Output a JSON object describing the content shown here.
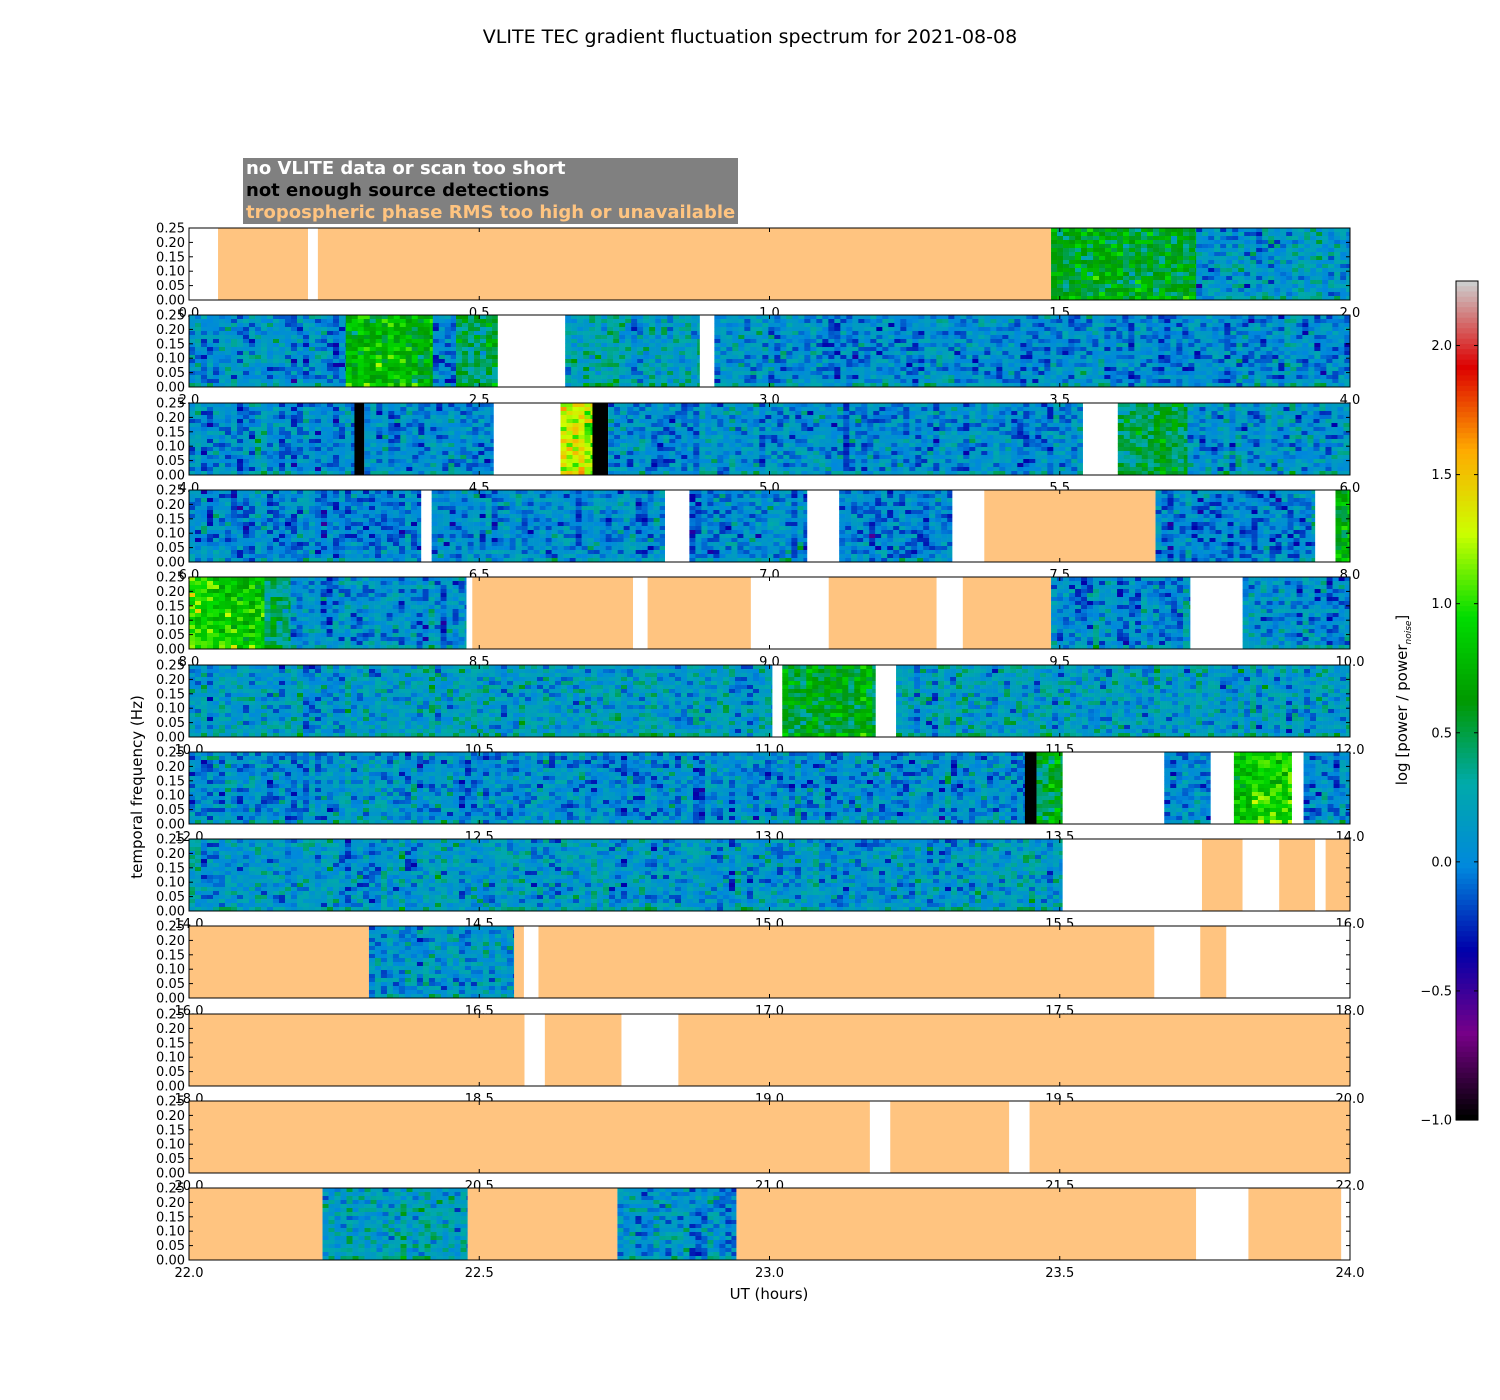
{
  "chart_data": {
    "type": "heatmap",
    "title": "VLITE TEC gradient fluctuation spectrum for 2021-08-08",
    "xlabel": "UT (hours)",
    "ylabel": "temporal frequency (Hz)",
    "ylim": [
      0,
      0.25
    ],
    "yticks": [
      "0.00",
      "0.05",
      "0.10",
      "0.15",
      "0.20",
      "0.25"
    ],
    "colorbar": {
      "label_main": "log [power / power",
      "label_sub": "noise",
      "label_end": "]",
      "range": [
        -1.0,
        2.25
      ],
      "ticks": [
        "−1.0",
        "−0.5",
        "0.0",
        "0.5",
        "1.0",
        "1.5",
        "2.0"
      ],
      "colormap": "spectral"
    },
    "legend": {
      "items": [
        {
          "label": "no VLITE data or scan too short",
          "color": "#ffffff"
        },
        {
          "label": "not enough source detections",
          "color": "#000000"
        },
        {
          "label": "tropospheric phase RMS too high or unavailable",
          "color": "#ffc480"
        }
      ],
      "background": "#808080"
    },
    "colors": {
      "tropo": "#ffc480",
      "nodata": "#ffffff",
      "nodet": "#000000"
    },
    "panels": [
      {
        "xlim": [
          0,
          2
        ],
        "xticks": [
          "0.0",
          "0.5",
          "1.0",
          "1.5",
          "2.0"
        ],
        "segments": [
          [
            0.0,
            0.05,
            "nodata"
          ],
          [
            0.05,
            0.205,
            "tropo"
          ],
          [
            0.205,
            0.222,
            "nodata"
          ],
          [
            0.222,
            1.485,
            "tropo"
          ],
          [
            1.485,
            1.735,
            "data",
            0.6
          ],
          [
            1.735,
            2.0,
            "data",
            0.1
          ]
        ]
      },
      {
        "xlim": [
          2,
          4
        ],
        "xticks": [
          "2.0",
          "2.5",
          "3.0",
          "3.5",
          "4.0"
        ],
        "segments": [
          [
            2.0,
            2.27,
            "data",
            0.05
          ],
          [
            2.27,
            2.42,
            "data",
            0.75
          ],
          [
            2.42,
            2.46,
            "data",
            0.05
          ],
          [
            2.46,
            2.532,
            "data",
            0.45
          ],
          [
            2.532,
            2.648,
            "nodata"
          ],
          [
            2.648,
            2.88,
            "data",
            0.2
          ],
          [
            2.88,
            2.905,
            "nodata"
          ],
          [
            2.905,
            4.0,
            "data",
            0.05
          ]
        ]
      },
      {
        "xlim": [
          4,
          6
        ],
        "xticks": [
          "4.0",
          "4.5",
          "5.0",
          "5.5",
          "6.0"
        ],
        "segments": [
          [
            4.0,
            4.285,
            "data",
            0.05
          ],
          [
            4.285,
            4.302,
            "nodet"
          ],
          [
            4.302,
            4.525,
            "data",
            0.05
          ],
          [
            4.525,
            4.64,
            "nodata"
          ],
          [
            4.64,
            4.695,
            "data",
            1.25
          ],
          [
            4.695,
            4.722,
            "nodet"
          ],
          [
            4.722,
            4.755,
            "data",
            0.05
          ],
          [
            4.755,
            5.54,
            "data",
            0.05
          ],
          [
            5.54,
            5.6,
            "nodata"
          ],
          [
            5.6,
            5.72,
            "data",
            0.5
          ],
          [
            5.72,
            6.0,
            "data",
            0.1
          ]
        ]
      },
      {
        "xlim": [
          6,
          8
        ],
        "xticks": [
          "6.0",
          "6.5",
          "7.0",
          "7.5",
          "8.0"
        ],
        "segments": [
          [
            6.0,
            6.4,
            "data",
            0.0
          ],
          [
            6.4,
            6.418,
            "nodata"
          ],
          [
            6.418,
            6.82,
            "data",
            0.05
          ],
          [
            6.82,
            6.862,
            "nodata"
          ],
          [
            6.862,
            7.065,
            "data",
            0.0
          ],
          [
            7.065,
            7.12,
            "nodata"
          ],
          [
            7.12,
            7.315,
            "data",
            0.0
          ],
          [
            7.315,
            7.37,
            "nodata"
          ],
          [
            7.37,
            7.665,
            "tropo"
          ],
          [
            7.665,
            7.94,
            "data",
            0.0
          ],
          [
            7.94,
            7.975,
            "nodata"
          ],
          [
            7.975,
            8.0,
            "data",
            0.7
          ]
        ]
      },
      {
        "xlim": [
          8,
          10
        ],
        "xticks": [
          "8.0",
          "8.5",
          "9.0",
          "9.5",
          "10.0"
        ],
        "segments": [
          [
            8.0,
            8.13,
            "data",
            0.9
          ],
          [
            8.13,
            8.175,
            "data",
            0.4
          ],
          [
            8.175,
            8.478,
            "data",
            0.05
          ],
          [
            8.478,
            8.488,
            "nodata"
          ],
          [
            8.488,
            8.765,
            "tropo"
          ],
          [
            8.765,
            8.79,
            "nodata"
          ],
          [
            8.79,
            8.968,
            "tropo"
          ],
          [
            8.968,
            9.102,
            "nodata"
          ],
          [
            9.102,
            9.288,
            "tropo"
          ],
          [
            9.288,
            9.333,
            "nodata"
          ],
          [
            9.333,
            9.485,
            "tropo"
          ],
          [
            9.485,
            9.725,
            "data",
            0.05
          ],
          [
            9.725,
            9.815,
            "nodata"
          ],
          [
            9.815,
            10.0,
            "data",
            0.05
          ]
        ]
      },
      {
        "xlim": [
          10,
          12
        ],
        "xticks": [
          "10.0",
          "10.5",
          "11.0",
          "11.5",
          "12.0"
        ],
        "segments": [
          [
            10.0,
            11.005,
            "data",
            0.15
          ],
          [
            11.005,
            11.022,
            "nodata"
          ],
          [
            11.022,
            11.183,
            "data",
            0.6
          ],
          [
            11.183,
            11.218,
            "nodata"
          ],
          [
            11.218,
            12.0,
            "data",
            0.15
          ]
        ]
      },
      {
        "xlim": [
          12,
          14
        ],
        "xticks": [
          "12.0",
          "12.5",
          "13.0",
          "13.5",
          "14.0"
        ],
        "segments": [
          [
            12.0,
            13.44,
            "data",
            0.05
          ],
          [
            13.44,
            13.46,
            "nodet"
          ],
          [
            13.46,
            13.505,
            "data",
            0.5
          ],
          [
            13.505,
            13.68,
            "nodata"
          ],
          [
            13.68,
            13.76,
            "data",
            0.05
          ],
          [
            13.76,
            13.8,
            "nodata"
          ],
          [
            13.8,
            13.9,
            "data",
            0.9
          ],
          [
            13.9,
            13.92,
            "nodata"
          ],
          [
            13.92,
            14.0,
            "data",
            0.05
          ]
        ]
      },
      {
        "xlim": [
          14,
          16
        ],
        "xticks": [
          "14.0",
          "14.5",
          "15.0",
          "15.5",
          "16.0"
        ],
        "segments": [
          [
            14.0,
            15.505,
            "data",
            0.1
          ],
          [
            15.505,
            15.745,
            "nodata"
          ],
          [
            15.745,
            15.815,
            "tropo"
          ],
          [
            15.815,
            15.878,
            "nodata"
          ],
          [
            15.878,
            15.94,
            "tropo"
          ],
          [
            15.94,
            15.958,
            "nodata"
          ],
          [
            15.958,
            16.0,
            "tropo"
          ]
        ]
      },
      {
        "xlim": [
          16,
          18
        ],
        "xticks": [
          "16.0",
          "16.5",
          "17.0",
          "17.5",
          "18.0"
        ],
        "segments": [
          [
            16.0,
            16.31,
            "tropo"
          ],
          [
            16.31,
            16.56,
            "data",
            0.1
          ],
          [
            16.56,
            16.577,
            "tropo"
          ],
          [
            16.577,
            16.602,
            "nodata"
          ],
          [
            16.602,
            17.663,
            "tropo"
          ],
          [
            17.663,
            17.742,
            "nodata"
          ],
          [
            17.742,
            17.787,
            "tropo"
          ],
          [
            17.787,
            18.0,
            "nodata"
          ]
        ]
      },
      {
        "xlim": [
          18,
          20
        ],
        "xticks": [
          "18.0",
          "18.5",
          "19.0",
          "19.5",
          "20.0"
        ],
        "segments": [
          [
            18.0,
            18.578,
            "tropo"
          ],
          [
            18.578,
            18.613,
            "nodata"
          ],
          [
            18.613,
            18.745,
            "tropo"
          ],
          [
            18.745,
            18.843,
            "nodata"
          ],
          [
            18.843,
            20.0,
            "tropo"
          ]
        ]
      },
      {
        "xlim": [
          20,
          22
        ],
        "xticks": [
          "20.0",
          "20.5",
          "21.0",
          "21.5",
          "22.0"
        ],
        "segments": [
          [
            20.0,
            21.173,
            "tropo"
          ],
          [
            21.173,
            21.208,
            "nodata"
          ],
          [
            21.208,
            21.413,
            "tropo"
          ],
          [
            21.413,
            21.448,
            "nodata"
          ],
          [
            21.448,
            22.0,
            "tropo"
          ]
        ]
      },
      {
        "xlim": [
          22,
          24
        ],
        "xticks": [
          "22.0",
          "22.5",
          "23.0",
          "23.5",
          "24.0"
        ],
        "segments": [
          [
            22.0,
            22.23,
            "tropo"
          ],
          [
            22.23,
            22.48,
            "data",
            0.2
          ],
          [
            22.48,
            22.738,
            "tropo"
          ],
          [
            22.738,
            22.943,
            "data",
            0.1
          ],
          [
            22.943,
            23.735,
            "tropo"
          ],
          [
            23.735,
            23.825,
            "nodata"
          ],
          [
            23.825,
            23.985,
            "tropo"
          ],
          [
            23.985,
            24.0,
            "nodata"
          ]
        ]
      }
    ]
  }
}
